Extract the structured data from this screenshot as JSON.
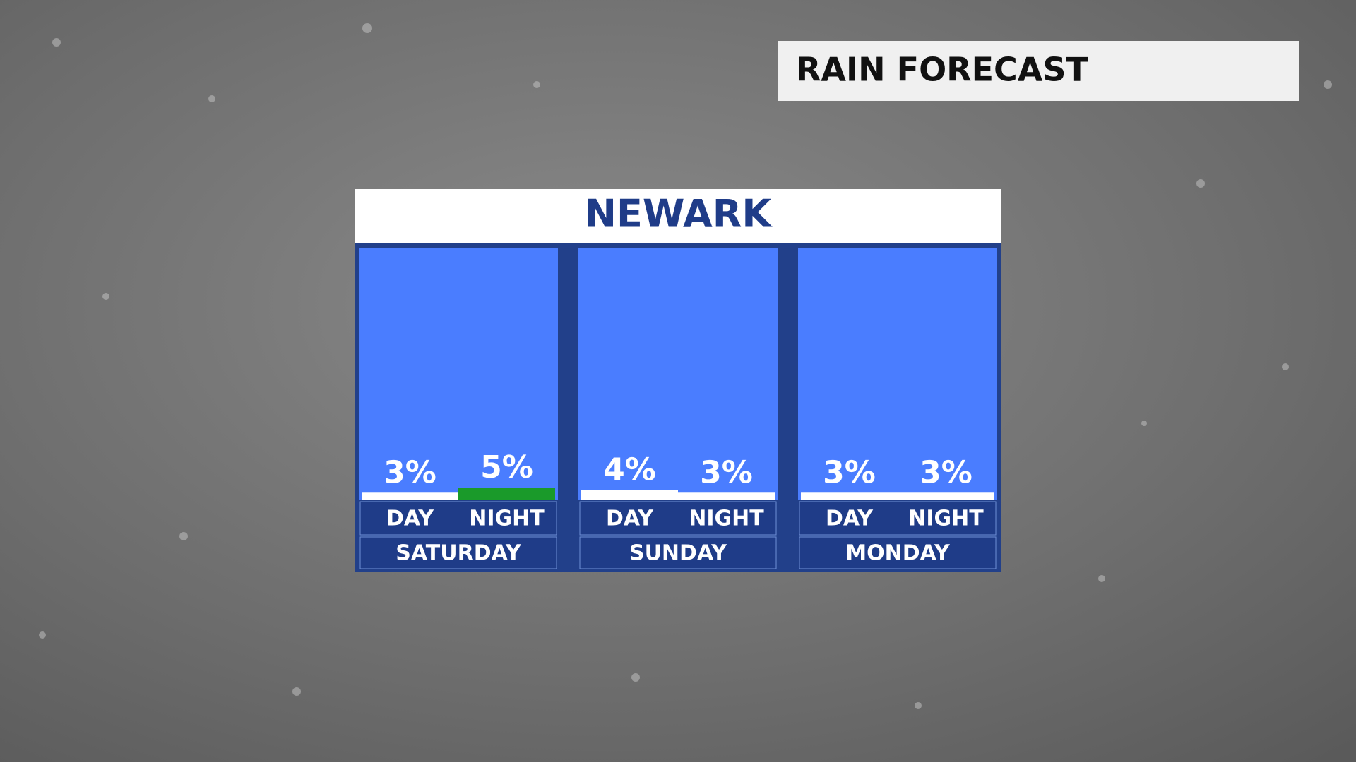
{
  "header": {
    "title": "RAIN FORECAST"
  },
  "chart_data": {
    "type": "bar",
    "title": "NEWARK",
    "categories": [
      "SATURDAY",
      "SUNDAY",
      "MONDAY"
    ],
    "series": [
      {
        "name": "DAY",
        "values": [
          3,
          4,
          3
        ],
        "value_labels": [
          "3%",
          "4%",
          "3%"
        ],
        "colors": [
          "#ffffff",
          "#ffffff",
          "#ffffff"
        ]
      },
      {
        "name": "NIGHT",
        "values": [
          5,
          3,
          3
        ],
        "value_labels": [
          "5%",
          "3%",
          "3%"
        ],
        "colors": [
          "#1a9a2a",
          "#ffffff",
          "#ffffff"
        ]
      }
    ],
    "ylim": [
      0,
      100
    ]
  }
}
